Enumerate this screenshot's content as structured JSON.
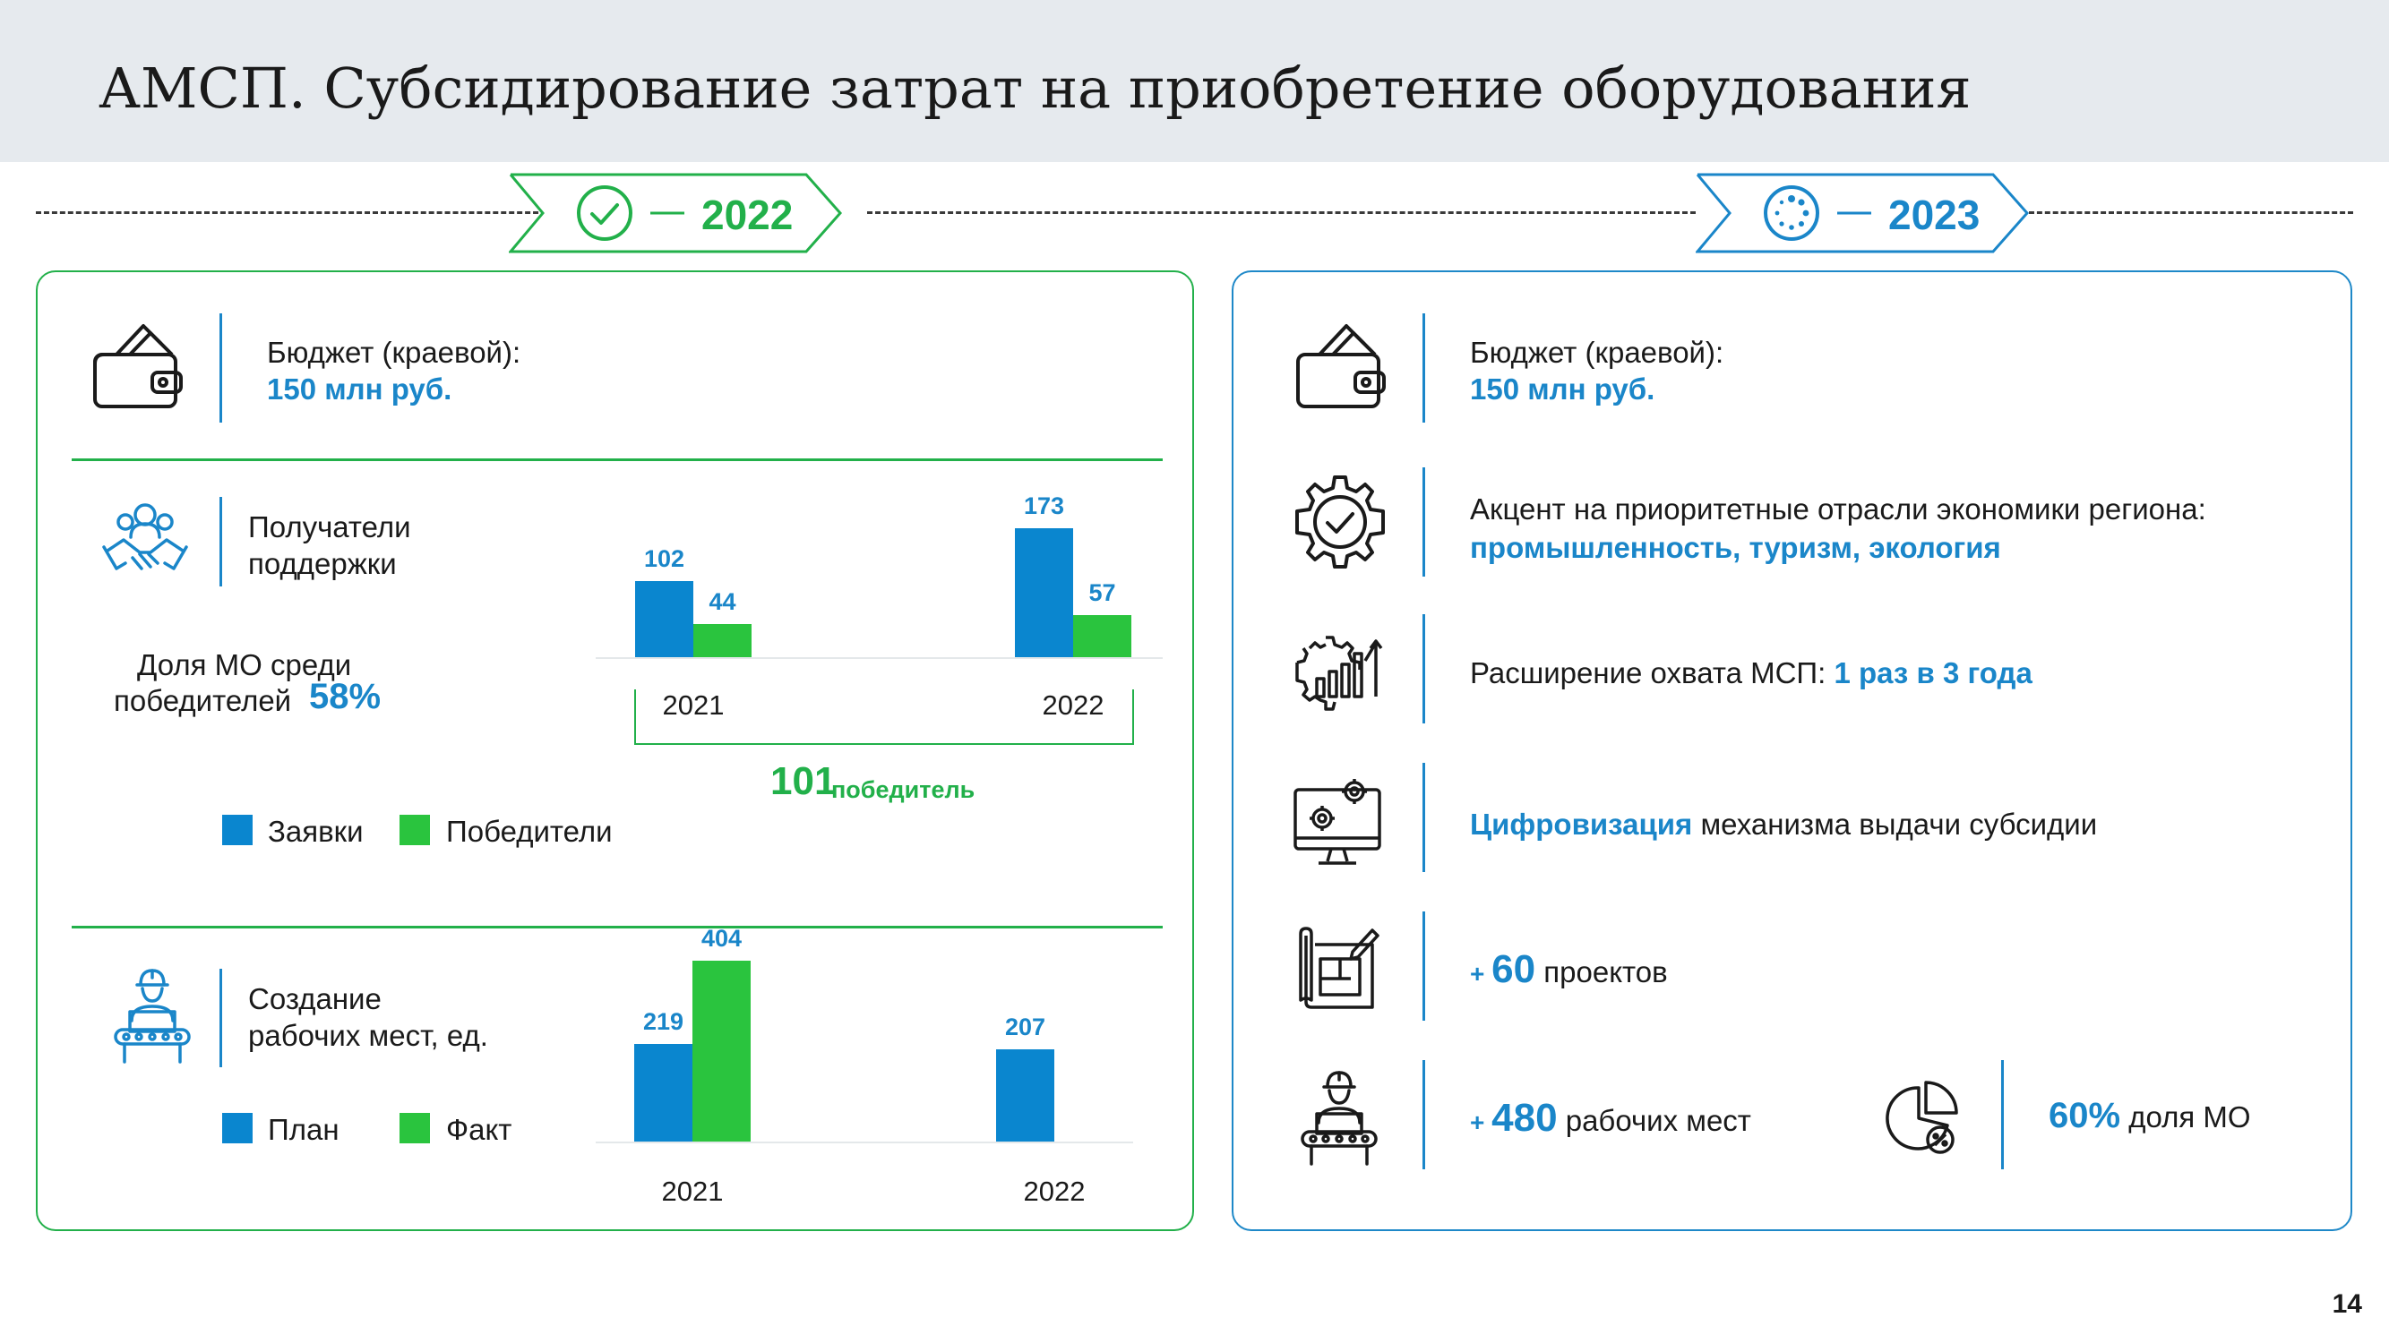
{
  "title": "АМСП. Субсидирование затрат на приобретение оборудования",
  "page_number": "14",
  "colors": {
    "blue": "#1a86c9",
    "green": "#22b04a",
    "bar_blue": "#0a86cf",
    "bar_green": "#2ac43e"
  },
  "left": {
    "year": "2022",
    "budget": {
      "label": "Бюджет (краевой):",
      "value": "150 млн руб."
    },
    "recipients": {
      "label_line1": "Получатели",
      "label_line2": "поддержки",
      "share_line1": "Доля МО среди",
      "share_line2": "победителей",
      "share_value": "58%",
      "winners_number": "101",
      "winners_text": "победитель",
      "legend": [
        "Заявки",
        "Победители"
      ]
    },
    "jobs": {
      "label_line1": "Создание",
      "label_line2": "рабочих мест, ед.",
      "legend": [
        "План",
        "Факт"
      ]
    }
  },
  "right": {
    "year": "2023",
    "budget": {
      "label": "Бюджет (краевой):",
      "value": "150 млн руб."
    },
    "accent": {
      "label": "Акцент на приоритетные отрасли экономики региона:",
      "value": "промышленность, туризм, экология"
    },
    "coverage": {
      "label": "Расширение охвата МСП: ",
      "value": "1 раз в 3 года"
    },
    "digital": {
      "value": "Цифровизация",
      "label": " механизма выдачи субсидии"
    },
    "projects": {
      "prefix": "+ ",
      "value": "60",
      "label": " проектов"
    },
    "jobs": {
      "prefix": "+ ",
      "value": "480",
      "label": " рабочих мест"
    },
    "mo_share": {
      "value": "60%",
      "label": " доля МО"
    }
  },
  "chart_data": [
    {
      "type": "bar",
      "categories": [
        "2021",
        "2022"
      ],
      "series": [
        {
          "name": "Заявки",
          "values": [
            102,
            173
          ]
        },
        {
          "name": "Победители",
          "values": [
            44,
            57
          ]
        }
      ]
    },
    {
      "type": "bar",
      "categories": [
        "2021",
        "2022"
      ],
      "series": [
        {
          "name": "План",
          "values": [
            219,
            207
          ]
        },
        {
          "name": "Факт",
          "values": [
            404,
            null
          ]
        }
      ]
    }
  ]
}
